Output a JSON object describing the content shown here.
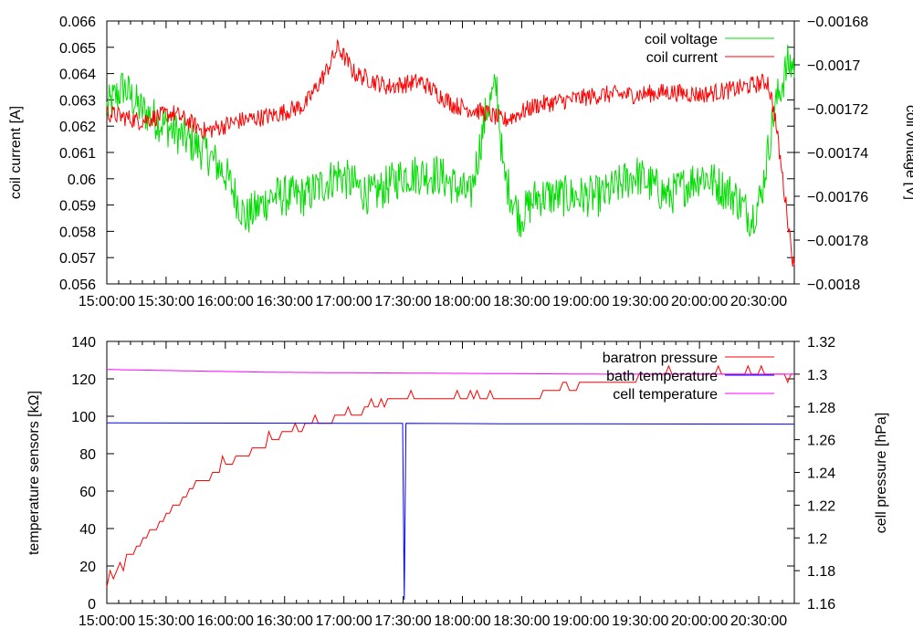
{
  "chart_data": [
    {
      "type": "line",
      "x_tick_labels": [
        "15:00:00",
        "15:30:00",
        "16:00:00",
        "16:30:00",
        "17:00:00",
        "17:30:00",
        "18:00:00",
        "18:30:00",
        "19:00:00",
        "19:30:00",
        "20:00:00",
        "20:30:00"
      ],
      "xlim": [
        "15:00:00",
        "20:48:00"
      ],
      "ylabel_left": "coil current [A]",
      "ylabel_right": "coil voltage [V]",
      "ylim_left": [
        0.056,
        0.066
      ],
      "ylim_right": [
        -0.0018,
        -0.00168
      ],
      "yticks_left": [
        "0.056",
        "0.057",
        "0.058",
        "0.059",
        "0.06",
        "0.061",
        "0.062",
        "0.063",
        "0.064",
        "0.065",
        "0.066"
      ],
      "yticks_right": [
        "−0.0018",
        "−0.00178",
        "−0.00176",
        "−0.00174",
        "−0.00172",
        "−0.0017",
        "−0.00168"
      ],
      "legend_position": "top-right",
      "series": [
        {
          "name": "coil voltage",
          "axis": "right",
          "color": "#00dd00",
          "x_min": [
            0,
            5,
            10,
            20,
            30,
            40,
            50,
            60,
            70,
            80,
            90,
            100,
            110,
            120,
            130,
            140,
            150,
            160,
            170,
            180,
            190,
            200,
            208
          ],
          "points": [
            [
              0,
              -0.00172
            ],
            [
              5,
              -0.00171
            ],
            [
              10,
              -0.00172
            ],
            [
              20,
              -0.00173
            ],
            [
              30,
              -0.00174
            ],
            [
              36,
              -0.00175
            ],
            [
              42,
              -0.00177
            ],
            [
              50,
              -0.00176
            ],
            [
              60,
              -0.00176
            ],
            [
              70,
              -0.00175
            ],
            [
              80,
              -0.00176
            ],
            [
              90,
              -0.00175
            ],
            [
              100,
              -0.00175
            ],
            [
              110,
              -0.00176
            ],
            [
              115,
              -0.00172
            ],
            [
              118,
              -0.00171
            ],
            [
              120,
              -0.00175
            ],
            [
              125,
              -0.00177
            ],
            [
              130,
              -0.00176
            ],
            [
              140,
              -0.00176
            ],
            [
              150,
              -0.00176
            ],
            [
              160,
              -0.00175
            ],
            [
              170,
              -0.00176
            ],
            [
              180,
              -0.00175
            ],
            [
              190,
              -0.00176
            ],
            [
              195,
              -0.00177
            ],
            [
              198,
              -0.00176
            ],
            [
              202,
              -0.00172
            ],
            [
              206,
              -0.0017
            ],
            [
              208,
              -0.0017
            ]
          ]
        },
        {
          "name": "coil current",
          "axis": "left",
          "color": "#ff0000",
          "points": [
            [
              0,
              0.0625
            ],
            [
              10,
              0.0622
            ],
            [
              20,
              0.0625
            ],
            [
              30,
              0.0618
            ],
            [
              40,
              0.0622
            ],
            [
              50,
              0.0624
            ],
            [
              60,
              0.0628
            ],
            [
              66,
              0.064
            ],
            [
              70,
              0.065
            ],
            [
              75,
              0.064
            ],
            [
              85,
              0.0635
            ],
            [
              95,
              0.0637
            ],
            [
              105,
              0.0628
            ],
            [
              115,
              0.0625
            ],
            [
              120,
              0.0622
            ],
            [
              130,
              0.0628
            ],
            [
              140,
              0.063
            ],
            [
              150,
              0.0632
            ],
            [
              160,
              0.0632
            ],
            [
              170,
              0.0633
            ],
            [
              180,
              0.0632
            ],
            [
              190,
              0.0634
            ],
            [
              200,
              0.0637
            ],
            [
              202,
              0.0625
            ],
            [
              205,
              0.0595
            ],
            [
              208,
              0.0565
            ]
          ]
        }
      ]
    },
    {
      "type": "line",
      "x_tick_labels": [
        "15:00:00",
        "15:30:00",
        "16:00:00",
        "16:30:00",
        "17:00:00",
        "17:30:00",
        "18:00:00",
        "18:30:00",
        "19:00:00",
        "19:30:00",
        "20:00:00",
        "20:30:00"
      ],
      "xlim": [
        "15:00:00",
        "20:48:00"
      ],
      "ylabel_left": "temperature sensors [kΩ]",
      "ylabel_right": "cell pressure [hPa]",
      "ylim_left": [
        0,
        140
      ],
      "ylim_right": [
        1.16,
        1.32
      ],
      "yticks_left": [
        "0",
        "20",
        "40",
        "60",
        "80",
        "100",
        "120",
        "140"
      ],
      "yticks_right": [
        "1.16",
        "1.18",
        "1.2",
        "1.22",
        "1.24",
        "1.26",
        "1.28",
        "1.3",
        "1.32"
      ],
      "legend_position": "top-right",
      "series": [
        {
          "name": "baratron pressure",
          "axis": "right",
          "color": "#ff0000",
          "points": [
            [
              0,
              1.172
            ],
            [
              5,
              1.182
            ],
            [
              10,
              1.196
            ],
            [
              15,
              1.207
            ],
            [
              20,
              1.218
            ],
            [
              25,
              1.228
            ],
            [
              30,
              1.236
            ],
            [
              35,
              1.243
            ],
            [
              40,
              1.249
            ],
            [
              45,
              1.254
            ],
            [
              50,
              1.259
            ],
            [
              55,
              1.263
            ],
            [
              60,
              1.267
            ],
            [
              65,
              1.27
            ],
            [
              70,
              1.273
            ],
            [
              75,
              1.276
            ],
            [
              80,
              1.279
            ],
            [
              85,
              1.282
            ],
            [
              90,
              1.286
            ],
            [
              92,
              1.287
            ],
            [
              100,
              1.286
            ],
            [
              110,
              1.284
            ],
            [
              118,
              1.287
            ],
            [
              130,
              1.287
            ],
            [
              140,
              1.292
            ],
            [
              150,
              1.294
            ],
            [
              160,
              1.297
            ],
            [
              170,
              1.299
            ],
            [
              180,
              1.301
            ],
            [
              190,
              1.302
            ],
            [
              196,
              1.301
            ],
            [
              200,
              1.302
            ],
            [
              204,
              1.298
            ],
            [
              208,
              1.296
            ]
          ]
        },
        {
          "name": "bath temperature",
          "axis": "left",
          "color": "#0000ff",
          "points": [
            [
              0,
              96.5
            ],
            [
              60,
              96.3
            ],
            [
              89.5,
              96.2
            ],
            [
              90,
              2
            ],
            [
              90.5,
              96.2
            ],
            [
              120,
              96.0
            ],
            [
              208,
              95.8
            ]
          ]
        },
        {
          "name": "cell temperature",
          "axis": "left",
          "color": "#ff00ff",
          "points": [
            [
              0,
              125
            ],
            [
              50,
              123.5
            ],
            [
              100,
              123
            ],
            [
              150,
              122.5
            ],
            [
              208,
              122.5
            ]
          ]
        }
      ]
    }
  ]
}
